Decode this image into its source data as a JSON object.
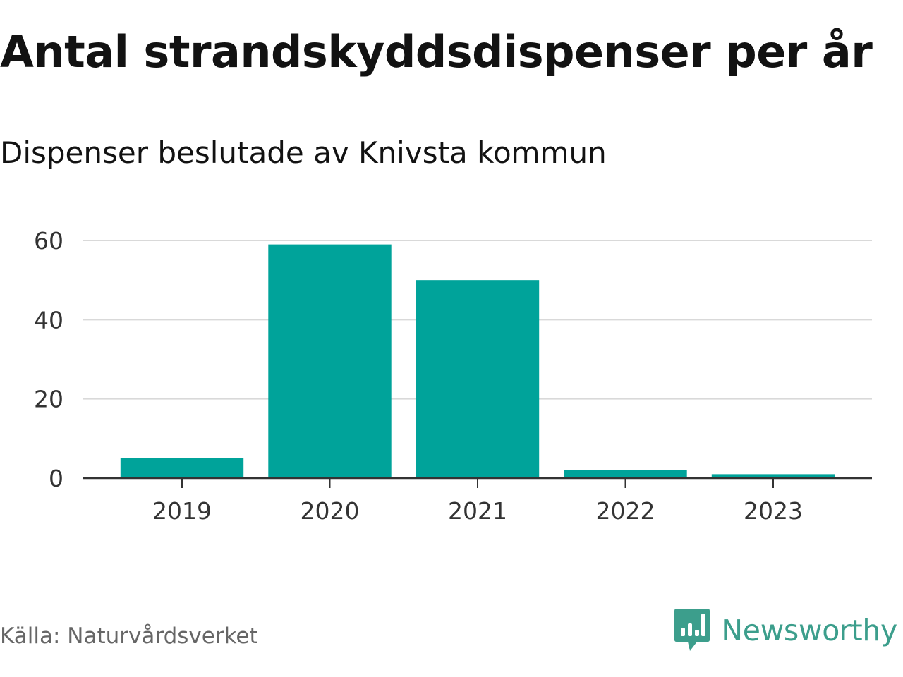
{
  "title": "Antal strandskyddsdispenser per år",
  "subtitle": "Dispenser beslutade av Knivsta kommun",
  "source": "Källa: Naturvårdsverket",
  "brand": {
    "name": "Newsworthy",
    "icon": "newsworthy-logo-icon",
    "color": "#3c9e8c"
  },
  "colors": {
    "bar": "#00a39a",
    "grid": "#d9d9d9",
    "axis": "#333333"
  },
  "chart_data": {
    "type": "bar",
    "categories": [
      "2019",
      "2020",
      "2021",
      "2022",
      "2023"
    ],
    "values": [
      5,
      59,
      50,
      2,
      1
    ],
    "ylim": [
      0,
      60
    ],
    "yticks": [
      0,
      20,
      40,
      60
    ],
    "title": "Antal strandskyddsdispenser per år",
    "subtitle": "Dispenser beslutade av Knivsta kommun",
    "grid": true
  }
}
